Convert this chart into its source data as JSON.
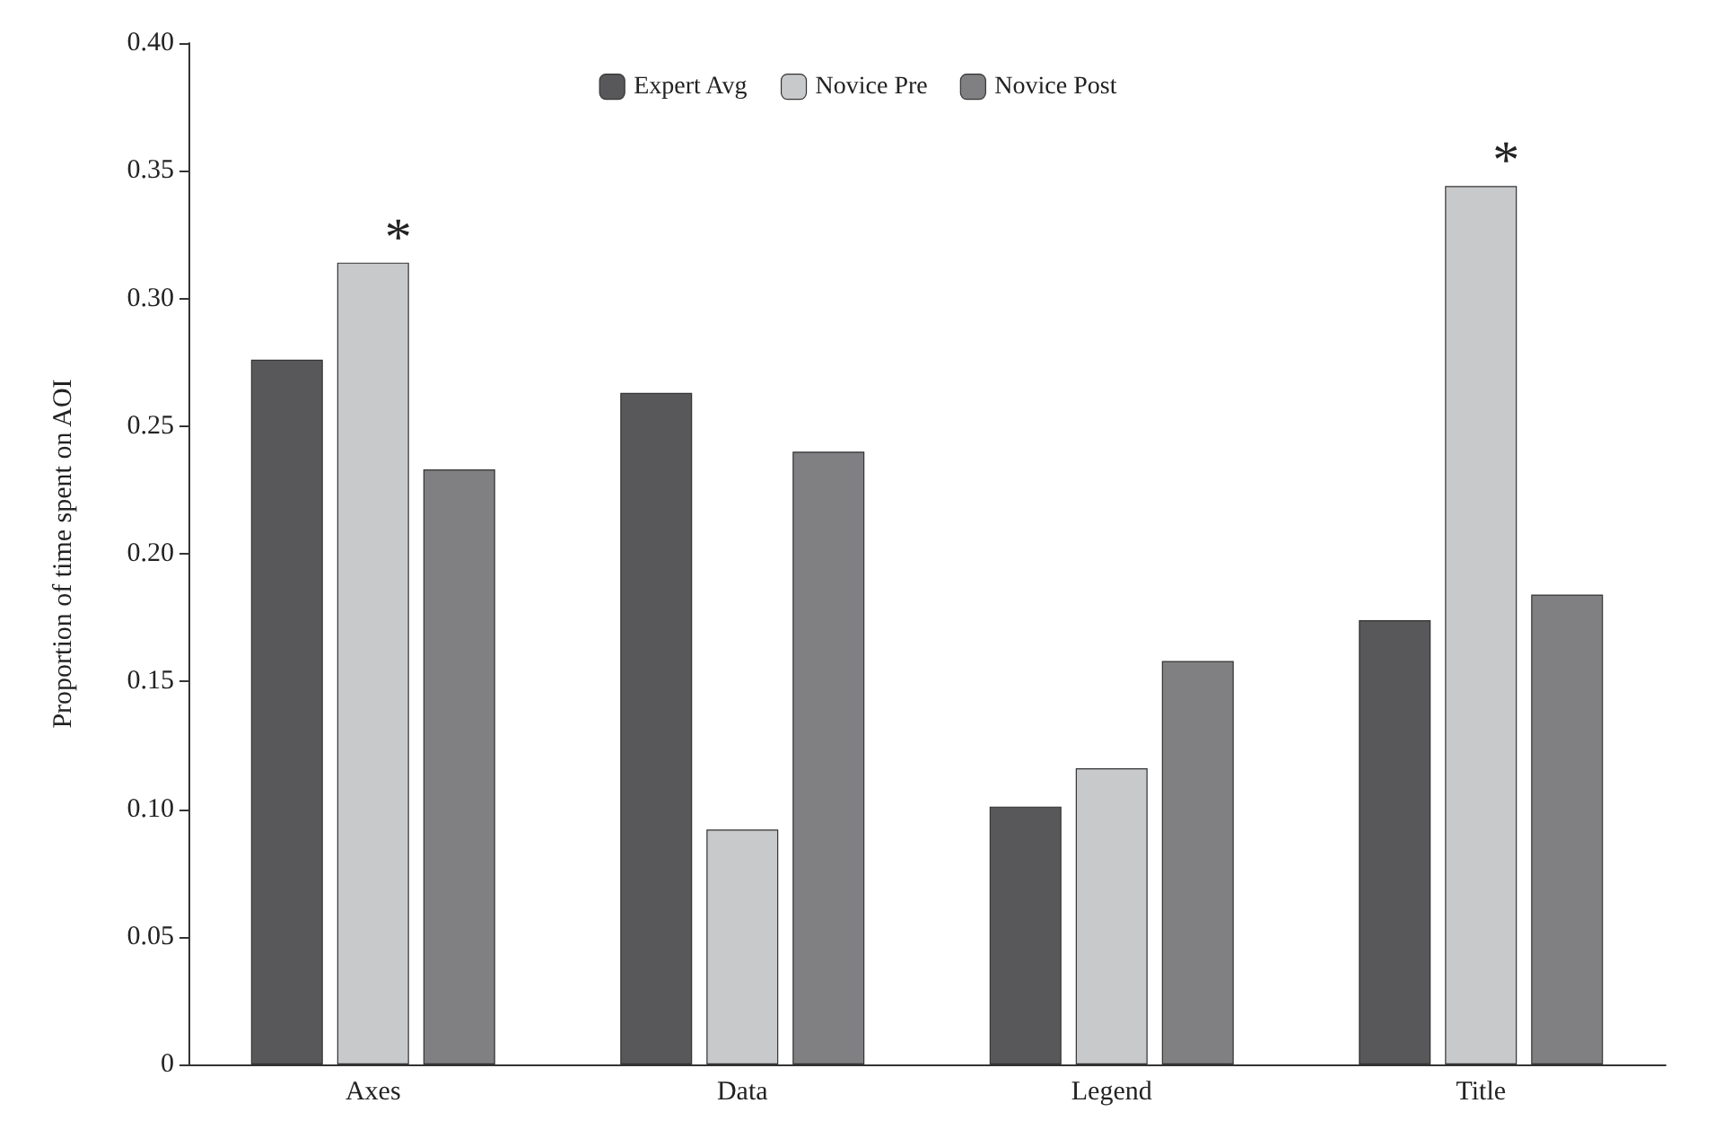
{
  "chart_data": {
    "type": "bar",
    "ylabel": "Proportion of time spent on AOI",
    "categories": [
      "Axes",
      "Data",
      "Legend",
      "Title"
    ],
    "series": [
      {
        "name": "Expert Avg",
        "color": "#58585a",
        "values": [
          0.276,
          0.263,
          0.101,
          0.174
        ]
      },
      {
        "name": "Novice Pre",
        "color": "#c8c9cb",
        "values": [
          0.314,
          0.092,
          0.116,
          0.344
        ]
      },
      {
        "name": "Novice Post",
        "color": "#808083",
        "values": [
          0.233,
          0.24,
          0.158,
          0.184
        ]
      }
    ],
    "ylim": [
      0,
      0.4
    ],
    "yticks": [
      0,
      0.05,
      {
        "value": 0.1,
        "label": "0.10"
      },
      0.15,
      {
        "value": 0.2,
        "label": "0.20"
      },
      0.25,
      {
        "value": 0.3,
        "label": "0.30"
      },
      0.35,
      {
        "value": 0.4,
        "label": "0.40"
      }
    ],
    "annotations": [
      {
        "text": "*",
        "x": "Axes",
        "y": 0.314
      },
      {
        "text": "*",
        "x": "Title",
        "y": 0.344
      }
    ],
    "grid": false,
    "legend": "top"
  }
}
